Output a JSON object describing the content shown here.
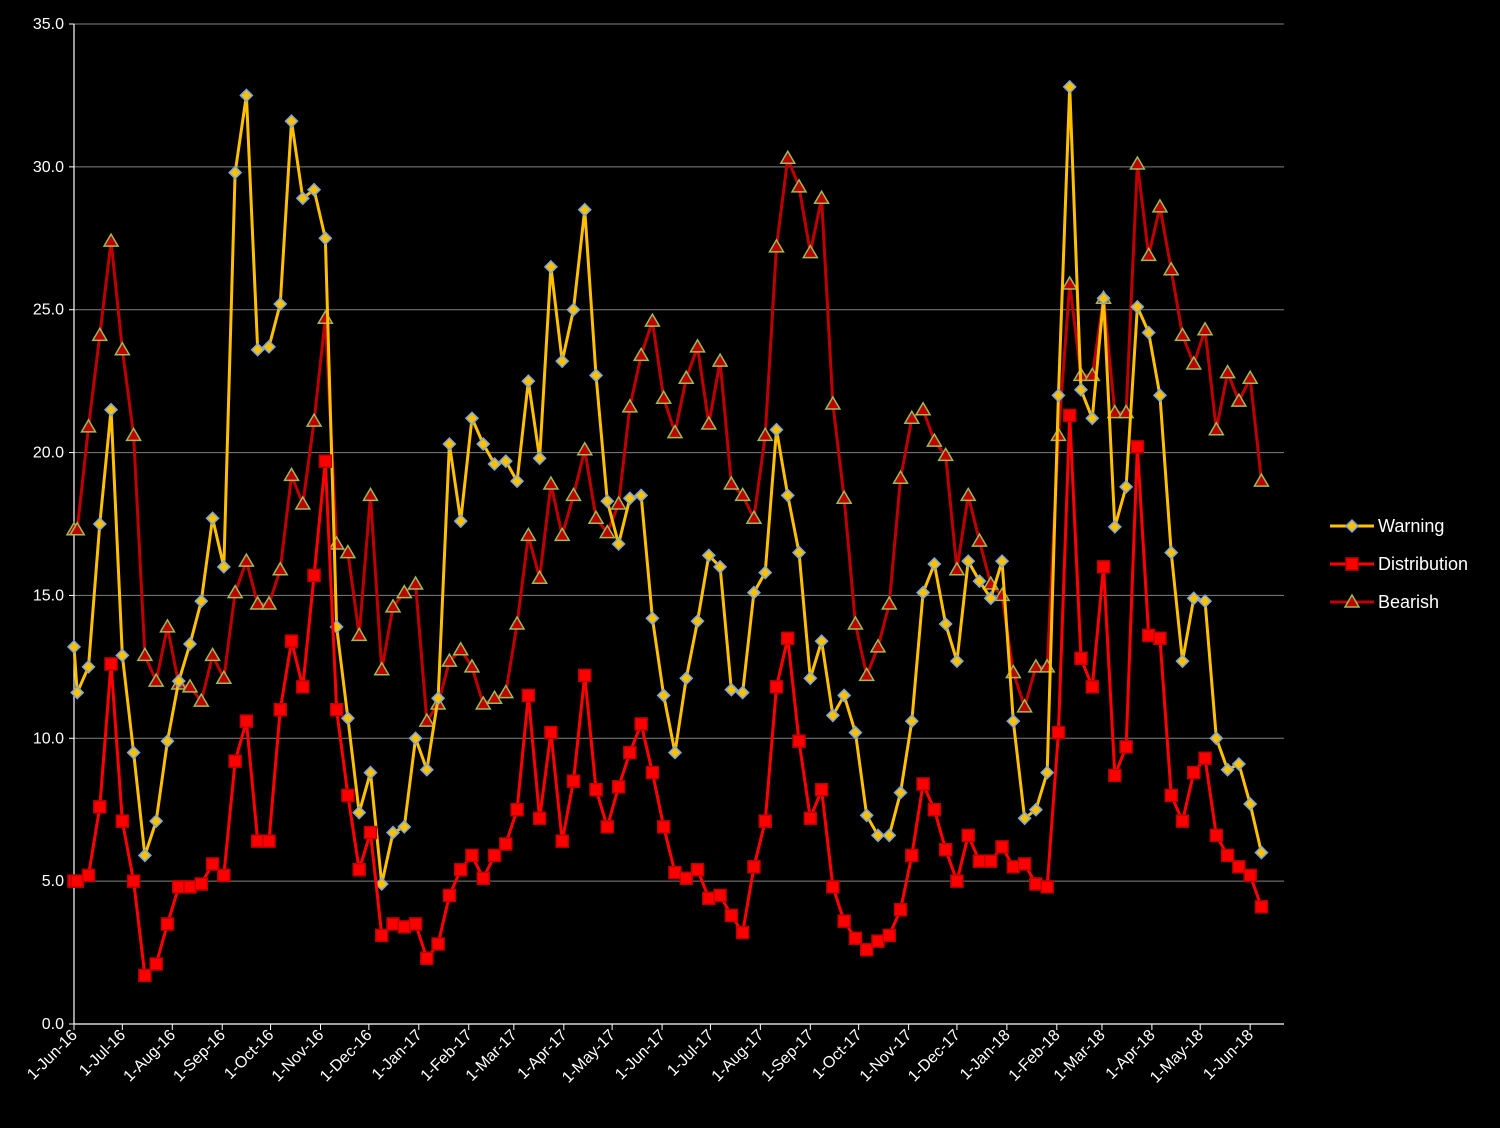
{
  "chart_data": {
    "type": "line",
    "title": "",
    "xlabel": "",
    "ylabel": "",
    "ylim": [
      0,
      35
    ],
    "y_ticks": [
      "0.0",
      "5.0",
      "10.0",
      "15.0",
      "20.0",
      "25.0",
      "30.0",
      "35.0"
    ],
    "grid": "horizontal",
    "legend_position": "right",
    "x_start": "2016-06-01",
    "x_end": "2018-06-22",
    "x_ticks": [
      {
        "label": "1-Jun-16",
        "date": "2016-06-01"
      },
      {
        "label": "1-Jul-16",
        "date": "2016-07-01"
      },
      {
        "label": "1-Aug-16",
        "date": "2016-08-01"
      },
      {
        "label": "1-Sep-16",
        "date": "2016-09-01"
      },
      {
        "label": "1-Oct-16",
        "date": "2016-10-01"
      },
      {
        "label": "1-Nov-16",
        "date": "2016-11-01"
      },
      {
        "label": "1-Dec-16",
        "date": "2016-12-01"
      },
      {
        "label": "1-Jan-17",
        "date": "2017-01-01"
      },
      {
        "label": "1-Feb-17",
        "date": "2017-02-01"
      },
      {
        "label": "1-Mar-17",
        "date": "2017-03-01"
      },
      {
        "label": "1-Apr-17",
        "date": "2017-04-01"
      },
      {
        "label": "1-May-17",
        "date": "2017-05-01"
      },
      {
        "label": "1-Jun-17",
        "date": "2017-06-01"
      },
      {
        "label": "1-Jul-17",
        "date": "2017-07-01"
      },
      {
        "label": "1-Aug-17",
        "date": "2017-08-01"
      },
      {
        "label": "1-Sep-17",
        "date": "2017-09-01"
      },
      {
        "label": "1-Oct-17",
        "date": "2017-10-01"
      },
      {
        "label": "1-Nov-17",
        "date": "2017-11-01"
      },
      {
        "label": "1-Dec-17",
        "date": "2017-12-01"
      },
      {
        "label": "1-Jan-18",
        "date": "2018-01-01"
      },
      {
        "label": "1-Feb-18",
        "date": "2018-02-01"
      },
      {
        "label": "1-Mar-18",
        "date": "2018-03-01"
      },
      {
        "label": "1-Apr-18",
        "date": "2018-04-01"
      },
      {
        "label": "1-May-18",
        "date": "2018-05-01"
      },
      {
        "label": "1-Jun-18",
        "date": "2018-06-01"
      }
    ],
    "x": [
      "2016-06-01",
      "2016-06-03",
      "2016-06-10",
      "2016-06-17",
      "2016-06-24",
      "2016-07-01",
      "2016-07-08",
      "2016-07-15",
      "2016-07-22",
      "2016-07-29",
      "2016-08-05",
      "2016-08-12",
      "2016-08-19",
      "2016-08-26",
      "2016-09-02",
      "2016-09-09",
      "2016-09-16",
      "2016-09-23",
      "2016-09-30",
      "2016-10-07",
      "2016-10-14",
      "2016-10-21",
      "2016-10-28",
      "2016-11-04",
      "2016-11-11",
      "2016-11-18",
      "2016-11-25",
      "2016-12-02",
      "2016-12-09",
      "2016-12-16",
      "2016-12-23",
      "2016-12-30",
      "2017-01-06",
      "2017-01-13",
      "2017-01-20",
      "2017-01-27",
      "2017-02-03",
      "2017-02-10",
      "2017-02-17",
      "2017-02-24",
      "2017-03-03",
      "2017-03-10",
      "2017-03-17",
      "2017-03-24",
      "2017-03-31",
      "2017-04-07",
      "2017-04-14",
      "2017-04-21",
      "2017-04-28",
      "2017-05-05",
      "2017-05-12",
      "2017-05-19",
      "2017-05-26",
      "2017-06-02",
      "2017-06-09",
      "2017-06-16",
      "2017-06-23",
      "2017-06-30",
      "2017-07-07",
      "2017-07-14",
      "2017-07-21",
      "2017-07-28",
      "2017-08-04",
      "2017-08-11",
      "2017-08-18",
      "2017-08-25",
      "2017-09-01",
      "2017-09-08",
      "2017-09-15",
      "2017-09-22",
      "2017-09-29",
      "2017-10-06",
      "2017-10-13",
      "2017-10-20",
      "2017-10-27",
      "2017-11-03",
      "2017-11-10",
      "2017-11-17",
      "2017-11-24",
      "2017-12-01",
      "2017-12-08",
      "2017-12-15",
      "2017-12-22",
      "2017-12-29",
      "2018-01-05",
      "2018-01-12",
      "2018-01-19",
      "2018-01-26",
      "2018-02-02",
      "2018-02-09",
      "2018-02-16",
      "2018-02-23",
      "2018-03-02",
      "2018-03-09",
      "2018-03-16",
      "2018-03-23",
      "2018-03-30",
      "2018-04-06",
      "2018-04-13",
      "2018-04-20",
      "2018-04-27",
      "2018-05-04",
      "2018-05-11",
      "2018-05-18",
      "2018-05-25",
      "2018-06-01",
      "2018-06-08"
    ],
    "series": [
      {
        "name": "Warning",
        "color": "#FFC000",
        "marker": "diamond",
        "marker_fill": "#FFC000",
        "marker_edge": "#7BA7D9",
        "values": [
          13.2,
          11.6,
          12.5,
          17.5,
          21.5,
          12.9,
          9.5,
          5.9,
          7.1,
          9.9,
          12.0,
          13.3,
          14.8,
          17.7,
          16.0,
          29.8,
          32.5,
          23.6,
          23.7,
          25.2,
          31.6,
          28.9,
          29.2,
          27.5,
          13.9,
          10.7,
          7.4,
          8.8,
          4.9,
          6.7,
          6.9,
          10.0,
          8.9,
          11.4,
          20.3,
          17.6,
          21.2,
          20.3,
          19.6,
          19.7,
          19.0,
          22.5,
          19.8,
          26.5,
          23.2,
          25.0,
          28.5,
          22.7,
          18.3,
          16.8,
          18.4,
          18.5,
          14.2,
          11.5,
          9.5,
          12.1,
          14.1,
          16.4,
          16.0,
          11.7,
          11.6,
          15.1,
          15.8,
          20.8,
          18.5,
          16.5,
          12.1,
          13.4,
          10.8,
          11.5,
          10.2,
          7.3,
          6.6,
          6.6,
          8.1,
          10.6,
          15.1,
          16.1,
          14.0,
          12.7,
          16.2,
          15.5,
          14.9,
          16.2,
          10.6,
          7.2,
          7.5,
          8.8,
          22.0,
          32.8,
          22.2,
          21.2,
          25.4,
          17.4,
          18.8,
          25.1,
          24.2,
          22.0,
          16.5,
          12.7,
          14.9,
          14.8,
          10.0,
          8.9,
          9.1,
          7.7,
          6.0
        ]
      },
      {
        "name": "Distribution",
        "color": "#FF0000",
        "marker": "square",
        "marker_fill": "#FF0000",
        "marker_edge": "#C00000",
        "values": [
          5.0,
          5.0,
          5.2,
          7.6,
          12.6,
          7.1,
          5.0,
          1.7,
          2.1,
          3.5,
          4.8,
          4.8,
          4.9,
          5.6,
          5.2,
          9.2,
          10.6,
          6.4,
          6.4,
          11.0,
          13.4,
          11.8,
          15.7,
          19.7,
          11.0,
          8.0,
          5.4,
          6.7,
          3.1,
          3.5,
          3.4,
          3.5,
          2.3,
          2.8,
          4.5,
          5.4,
          5.9,
          5.1,
          5.9,
          6.3,
          7.5,
          11.5,
          7.2,
          10.2,
          6.4,
          8.5,
          12.2,
          8.2,
          6.9,
          8.3,
          9.5,
          10.5,
          8.8,
          6.9,
          5.3,
          5.1,
          5.4,
          4.4,
          4.5,
          3.8,
          3.2,
          5.5,
          7.1,
          11.8,
          13.5,
          9.9,
          7.2,
          8.2,
          4.8,
          3.6,
          3.0,
          2.6,
          2.9,
          3.1,
          4.0,
          5.9,
          8.4,
          7.5,
          6.1,
          5.0,
          6.6,
          5.7,
          5.7,
          6.2,
          5.5,
          5.6,
          4.9,
          4.8,
          10.2,
          21.3,
          12.8,
          11.8,
          16.0,
          8.7,
          9.7,
          20.2,
          13.6,
          13.5,
          8.0,
          7.1,
          8.8,
          9.3,
          6.6,
          5.9,
          5.5,
          5.2,
          4.1
        ]
      },
      {
        "name": "Bearish",
        "color": "#C00000",
        "marker": "triangle",
        "marker_fill": "#C00000",
        "marker_edge": "#9BBB59",
        "values": [
          17.3,
          17.3,
          20.9,
          24.1,
          27.4,
          23.6,
          20.6,
          12.9,
          12.0,
          13.9,
          11.9,
          11.8,
          11.3,
          12.9,
          12.1,
          15.1,
          16.2,
          14.7,
          14.7,
          15.9,
          19.2,
          18.2,
          21.1,
          24.7,
          16.8,
          16.5,
          13.6,
          18.5,
          12.4,
          14.6,
          15.1,
          15.4,
          10.6,
          11.2,
          12.7,
          13.1,
          12.5,
          11.2,
          11.4,
          11.6,
          14.0,
          17.1,
          15.6,
          18.9,
          17.1,
          18.5,
          20.1,
          17.7,
          17.2,
          18.2,
          21.6,
          23.4,
          24.6,
          21.9,
          20.7,
          22.6,
          23.7,
          21.0,
          23.2,
          18.9,
          18.5,
          17.7,
          20.6,
          27.2,
          30.3,
          29.3,
          27.0,
          28.9,
          21.7,
          18.4,
          14.0,
          12.2,
          13.2,
          14.7,
          19.1,
          21.2,
          21.5,
          20.4,
          19.9,
          15.9,
          18.5,
          16.9,
          15.4,
          15.0,
          12.3,
          11.1,
          12.5,
          12.5,
          20.6,
          25.9,
          22.7,
          22.7,
          25.4,
          21.4,
          21.4,
          30.1,
          26.9,
          28.6,
          26.4,
          24.1,
          23.1,
          24.3,
          20.8,
          22.8,
          21.8,
          22.6,
          19.0
        ]
      }
    ]
  }
}
